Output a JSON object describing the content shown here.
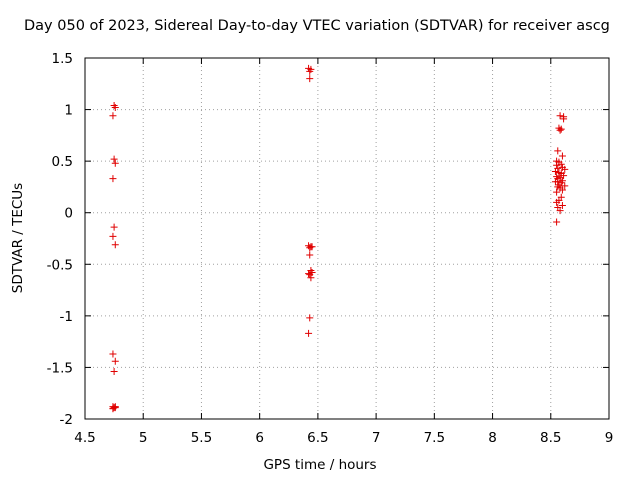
{
  "chart_data": {
    "type": "scatter",
    "title": "Day 050 of 2023, Sidereal Day-to-day VTEC variation (SDTVAR) for receiver ascg",
    "xlabel": "GPS time / hours",
    "ylabel": "SDTVAR / TECUs",
    "xlim": [
      4.5,
      9
    ],
    "ylim": [
      -2,
      1.5
    ],
    "xticks": [
      "4.5",
      "5",
      "5.5",
      "6",
      "6.5",
      "7",
      "7.5",
      "8",
      "8.5",
      "9"
    ],
    "yticks": [
      "-2",
      "-1.5",
      "-1",
      "-0.5",
      "0",
      "0.5",
      "1",
      "1.5"
    ],
    "grid": true,
    "marker": "+",
    "color": "#e00000",
    "series": [
      {
        "name": "SDTVAR",
        "x": [
          4.75,
          4.76,
          4.74,
          4.75,
          4.76,
          4.74,
          4.75,
          4.74,
          4.76,
          4.74,
          4.76,
          4.75,
          4.74,
          4.76,
          4.74,
          4.76,
          4.75,
          4.74,
          6.42,
          6.44,
          6.43,
          6.43,
          6.42,
          6.44,
          6.45,
          6.43,
          6.43,
          6.44,
          6.42,
          6.43,
          6.45,
          6.44,
          6.43,
          6.42,
          8.58,
          8.61,
          8.61,
          8.57,
          8.59,
          8.58,
          8.6,
          8.56,
          8.55,
          8.57,
          8.59,
          8.55,
          8.6,
          8.56,
          8.62,
          8.54,
          8.57,
          8.59,
          8.61,
          8.55,
          8.58,
          8.56,
          8.6,
          8.54,
          8.59,
          8.57,
          8.62,
          8.56,
          8.58,
          8.6,
          8.55,
          8.59,
          8.57,
          8.55,
          8.6,
          8.56,
          8.58,
          8.55,
          8.56
        ],
        "y": [
          1.04,
          1.02,
          0.94,
          0.52,
          0.48,
          0.33,
          -0.14,
          -0.23,
          -0.31,
          -1.37,
          -1.44,
          -1.54,
          -1.88,
          -1.89,
          -1.9,
          -1.88,
          -1.89,
          -1.9,
          1.4,
          1.39,
          1.37,
          1.3,
          -0.32,
          -0.33,
          -0.33,
          -0.34,
          -0.41,
          -0.56,
          -0.59,
          -0.6,
          -0.58,
          -0.63,
          -1.02,
          -1.17,
          0.94,
          0.93,
          0.91,
          0.82,
          0.81,
          0.8,
          0.55,
          0.6,
          0.5,
          0.49,
          0.47,
          0.46,
          0.44,
          0.43,
          0.42,
          0.4,
          0.39,
          0.38,
          0.36,
          0.35,
          0.34,
          0.33,
          0.31,
          0.3,
          0.29,
          0.27,
          0.26,
          0.25,
          0.24,
          0.22,
          0.2,
          0.15,
          0.12,
          0.1,
          0.07,
          0.05,
          0.02,
          -0.09,
          0.3
        ]
      }
    ]
  }
}
